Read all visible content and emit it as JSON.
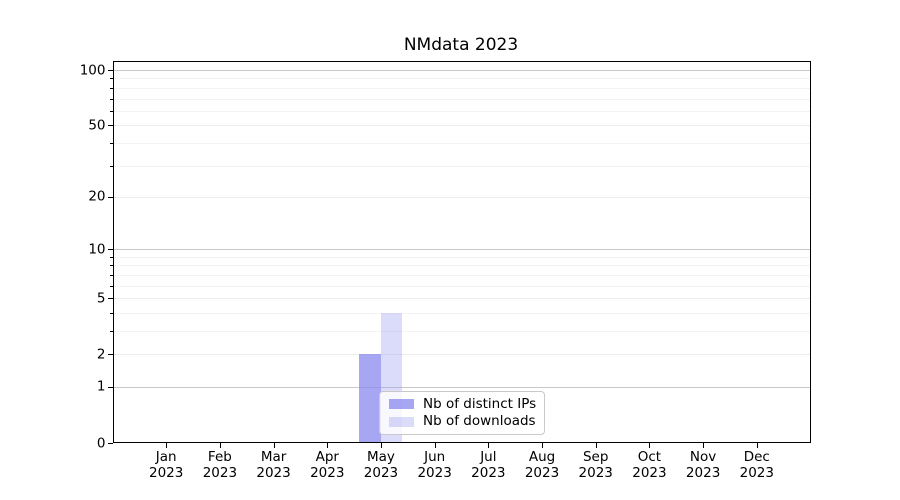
{
  "chart_data": {
    "type": "bar",
    "title": "NMdata 2023",
    "yscale": "log10(1+v)",
    "ylim": [
      0,
      112
    ],
    "grid": "on",
    "months": [
      "Jan",
      "Feb",
      "Mar",
      "Apr",
      "May",
      "Jun",
      "Jul",
      "Aug",
      "Sep",
      "Oct",
      "Nov",
      "Dec"
    ],
    "year_label": "2023",
    "y_tick_labels": [
      0,
      1,
      2,
      5,
      10,
      20,
      50,
      100
    ],
    "y_decade_lines": [
      1,
      10,
      100
    ],
    "y_sub_lines": [
      2,
      5,
      20,
      50
    ],
    "y_minor_lines": [
      3,
      4,
      6,
      7,
      8,
      9,
      30,
      40,
      60,
      70,
      80,
      90
    ],
    "series": [
      {
        "name": "Nb of distinct IPs",
        "color": "rgba(136,136,238,0.75)",
        "values": [
          0,
          0,
          0,
          0,
          2,
          0,
          0,
          0,
          0,
          0,
          0,
          0
        ]
      },
      {
        "name": "Nb of downloads",
        "color": "rgba(136,136,238,0.3)",
        "values": [
          0,
          0,
          0,
          0,
          4,
          0,
          0,
          0,
          0,
          0,
          0,
          0
        ]
      }
    ],
    "legend_position": "lower-center",
    "colors": {
      "grid_decade": "#c9c9c9",
      "grid_sub": "#ececec",
      "grid_minor": "#f3f3f3",
      "spine": "#000000",
      "text": "#000000",
      "legend_border": "#c9c9c9",
      "legend_bg": "rgba(255,255,255,0.8)"
    }
  }
}
